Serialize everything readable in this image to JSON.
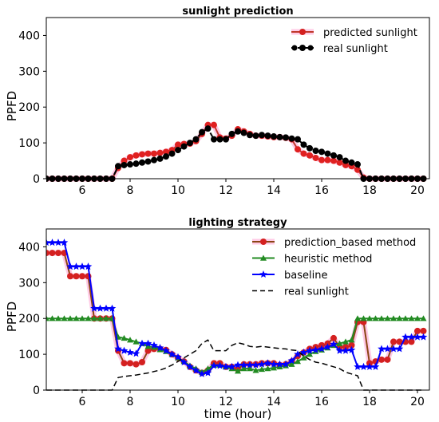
{
  "chart_data": [
    {
      "type": "line",
      "title": "sunlight prediction",
      "xlabel": "",
      "ylabel": "PPFD",
      "xlim": [
        4.5,
        20.5
      ],
      "ylim": [
        0,
        450
      ],
      "xticks": [
        6,
        8,
        10,
        12,
        14,
        16,
        18,
        20
      ],
      "yticks": [
        0,
        100,
        200,
        300,
        400
      ],
      "grid": false,
      "legend_position": "top-right",
      "series": [
        {
          "name": "predicted sunlight",
          "color": "#c0392b",
          "marker": "circle",
          "x": [
            4.5,
            4.75,
            5,
            5.25,
            5.5,
            5.75,
            6,
            6.25,
            6.5,
            6.75,
            7,
            7.25,
            7.5,
            7.75,
            8,
            8.25,
            8.5,
            8.75,
            9,
            9.25,
            9.5,
            9.75,
            10,
            10.25,
            10.5,
            10.75,
            11,
            11.25,
            11.5,
            11.75,
            12,
            12.25,
            12.5,
            12.75,
            13,
            13.25,
            13.5,
            13.75,
            14,
            14.25,
            14.5,
            14.75,
            15,
            15.25,
            15.5,
            15.75,
            16,
            16.25,
            16.5,
            16.75,
            17,
            17.25,
            17.5,
            17.75,
            18,
            18.25,
            18.5,
            18.75,
            19,
            19.25,
            19.5,
            19.75,
            20,
            20.25
          ],
          "y": [
            0,
            0,
            0,
            0,
            0,
            0,
            0,
            0,
            0,
            0,
            0,
            0,
            30,
            50,
            60,
            65,
            68,
            70,
            70,
            72,
            75,
            80,
            95,
            97,
            98,
            105,
            125,
            150,
            150,
            115,
            112,
            120,
            138,
            132,
            125,
            120,
            120,
            118,
            116,
            116,
            114,
            110,
            82,
            70,
            65,
            58,
            52,
            52,
            50,
            45,
            38,
            35,
            25,
            3,
            0,
            0,
            0,
            0,
            0,
            0,
            0,
            0,
            0,
            0
          ]
        },
        {
          "name": "real sunlight",
          "color": "#000000",
          "marker": "circle",
          "x": [
            4.5,
            4.75,
            5,
            5.25,
            5.5,
            5.75,
            6,
            6.25,
            6.5,
            6.75,
            7,
            7.25,
            7.5,
            7.75,
            8,
            8.25,
            8.5,
            8.75,
            9,
            9.25,
            9.5,
            9.75,
            10,
            10.25,
            10.5,
            10.75,
            11,
            11.25,
            11.5,
            11.75,
            12,
            12.25,
            12.5,
            12.75,
            13,
            13.25,
            13.5,
            13.75,
            14,
            14.25,
            14.5,
            14.75,
            15,
            15.25,
            15.5,
            15.75,
            16,
            16.25,
            16.5,
            16.75,
            17,
            17.25,
            17.5,
            17.75,
            18,
            18.25,
            18.5,
            18.75,
            19,
            19.25,
            19.5,
            19.75,
            20,
            20.25
          ],
          "y": [
            0,
            0,
            0,
            0,
            0,
            0,
            0,
            0,
            0,
            0,
            0,
            0,
            35,
            38,
            40,
            42,
            45,
            48,
            52,
            56,
            62,
            70,
            80,
            90,
            100,
            110,
            130,
            140,
            110,
            110,
            110,
            125,
            132,
            128,
            122,
            120,
            122,
            120,
            118,
            116,
            115,
            112,
            110,
            95,
            85,
            78,
            75,
            70,
            65,
            60,
            50,
            45,
            40,
            0,
            0,
            0,
            0,
            0,
            0,
            0,
            0,
            0,
            0,
            0
          ]
        }
      ]
    },
    {
      "type": "line",
      "title": "lighting strategy",
      "xlabel": "time (hour)",
      "ylabel": "PPFD",
      "xlim": [
        4.5,
        20.5
      ],
      "ylim": [
        0,
        450
      ],
      "xticks": [
        6,
        8,
        10,
        12,
        14,
        16,
        18,
        20
      ],
      "yticks": [
        0,
        100,
        200,
        300,
        400
      ],
      "grid": false,
      "legend_position": "top-right",
      "series": [
        {
          "name": "prediction_based method",
          "color": "#8b4513",
          "marker": "circle",
          "x": [
            4.5,
            4.75,
            5,
            5.25,
            5.5,
            5.75,
            6,
            6.25,
            6.5,
            6.75,
            7,
            7.25,
            7.5,
            7.75,
            8,
            8.25,
            8.5,
            8.75,
            9,
            9.25,
            9.5,
            9.75,
            10,
            10.25,
            10.5,
            10.75,
            11,
            11.25,
            11.5,
            11.75,
            12,
            12.25,
            12.5,
            12.75,
            13,
            13.25,
            13.5,
            13.75,
            14,
            14.25,
            14.5,
            14.75,
            15,
            15.25,
            15.5,
            15.75,
            16,
            16.25,
            16.5,
            16.75,
            17,
            17.25,
            17.5,
            17.75,
            18,
            18.25,
            18.5,
            18.75,
            19,
            19.25,
            19.5,
            19.75,
            20,
            20.25
          ],
          "y": [
            383,
            383,
            383,
            383,
            318,
            318,
            318,
            318,
            200,
            200,
            200,
            200,
            110,
            75,
            75,
            72,
            78,
            110,
            115,
            115,
            112,
            100,
            90,
            80,
            65,
            55,
            48,
            55,
            75,
            75,
            65,
            65,
            58,
            72,
            72,
            72,
            75,
            75,
            75,
            70,
            72,
            80,
            95,
            105,
            115,
            120,
            125,
            130,
            145,
            120,
            120,
            125,
            190,
            190,
            75,
            80,
            85,
            85,
            135,
            135,
            135,
            135,
            165,
            165
          ]
        },
        {
          "name": "heuristic method",
          "color": "#228b22",
          "marker": "triangle",
          "x": [
            4.5,
            4.75,
            5,
            5.25,
            5.5,
            5.75,
            6,
            6.25,
            6.5,
            6.75,
            7,
            7.25,
            7.5,
            7.75,
            8,
            8.25,
            8.5,
            8.75,
            9,
            9.25,
            9.5,
            9.75,
            10,
            10.25,
            10.5,
            10.75,
            11,
            11.25,
            11.5,
            11.75,
            12,
            12.25,
            12.5,
            12.75,
            13,
            13.25,
            13.5,
            13.75,
            14,
            14.25,
            14.5,
            14.75,
            15,
            15.25,
            15.5,
            15.75,
            16,
            16.25,
            16.5,
            16.75,
            17,
            17.25,
            17.5,
            17.75,
            18,
            18.25,
            18.5,
            18.75,
            19,
            19.25,
            19.5,
            19.75,
            20,
            20.25
          ],
          "y": [
            200,
            200,
            200,
            200,
            200,
            200,
            200,
            200,
            200,
            200,
            200,
            200,
            148,
            145,
            140,
            135,
            130,
            122,
            120,
            113,
            108,
            100,
            90,
            80,
            68,
            60,
            50,
            60,
            70,
            70,
            65,
            60,
            53,
            60,
            60,
            55,
            58,
            60,
            62,
            65,
            68,
            72,
            80,
            90,
            100,
            108,
            112,
            118,
            125,
            130,
            135,
            140,
            200,
            200,
            200,
            200,
            200,
            200,
            200,
            200,
            200,
            200,
            200,
            200
          ]
        },
        {
          "name": "baseline",
          "color": "#0000ff",
          "marker": "star",
          "x": [
            4.5,
            4.75,
            5,
            5.25,
            5.5,
            5.75,
            6,
            6.25,
            6.5,
            6.75,
            7,
            7.25,
            7.5,
            7.75,
            8,
            8.25,
            8.5,
            8.75,
            9,
            9.25,
            9.5,
            9.75,
            10,
            10.25,
            10.5,
            10.75,
            11,
            11.25,
            11.5,
            11.75,
            12,
            12.25,
            12.5,
            12.75,
            13,
            13.25,
            13.5,
            13.75,
            14,
            14.25,
            14.5,
            14.75,
            15,
            15.25,
            15.5,
            15.75,
            16,
            16.25,
            16.5,
            16.75,
            17,
            17.25,
            17.5,
            17.75,
            18,
            18.25,
            18.5,
            18.75,
            19,
            19.25,
            19.5,
            19.75,
            20,
            20.25
          ],
          "y": [
            412,
            412,
            412,
            412,
            345,
            345,
            345,
            345,
            228,
            228,
            228,
            228,
            115,
            110,
            105,
            102,
            130,
            130,
            125,
            118,
            110,
            100,
            92,
            78,
            65,
            55,
            45,
            48,
            68,
            68,
            65,
            65,
            70,
            70,
            70,
            70,
            72,
            75,
            72,
            72,
            72,
            82,
            100,
            105,
            110,
            112,
            115,
            120,
            128,
            110,
            110,
            112,
            65,
            65,
            65,
            65,
            115,
            115,
            115,
            115,
            148,
            148,
            148,
            148
          ]
        },
        {
          "name": "real sunlight",
          "color": "#000000",
          "marker": "none",
          "x": [
            4.5,
            4.75,
            5,
            5.25,
            5.5,
            5.75,
            6,
            6.25,
            6.5,
            6.75,
            7,
            7.25,
            7.5,
            7.75,
            8,
            8.25,
            8.5,
            8.75,
            9,
            9.25,
            9.5,
            9.75,
            10,
            10.25,
            10.5,
            10.75,
            11,
            11.25,
            11.5,
            11.75,
            12,
            12.25,
            12.5,
            12.75,
            13,
            13.25,
            13.5,
            13.75,
            14,
            14.25,
            14.5,
            14.75,
            15,
            15.25,
            15.5,
            15.75,
            16,
            16.25,
            16.5,
            16.75,
            17,
            17.25,
            17.5,
            17.75,
            18,
            18.25,
            18.5,
            18.75,
            19,
            19.25,
            19.5,
            19.75,
            20,
            20.25
          ],
          "y": [
            0,
            0,
            0,
            0,
            0,
            0,
            0,
            0,
            0,
            0,
            0,
            0,
            35,
            38,
            40,
            42,
            45,
            48,
            52,
            56,
            62,
            70,
            80,
            90,
            100,
            110,
            130,
            140,
            110,
            110,
            110,
            125,
            132,
            128,
            122,
            120,
            122,
            120,
            118,
            116,
            115,
            112,
            110,
            95,
            85,
            78,
            75,
            70,
            65,
            60,
            50,
            45,
            40,
            0,
            0,
            0,
            0,
            0,
            0,
            0,
            0,
            0,
            0,
            0
          ]
        }
      ]
    }
  ]
}
